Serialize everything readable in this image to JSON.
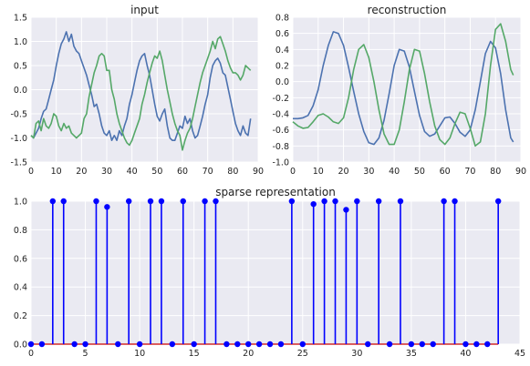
{
  "colors": {
    "background": "#eaeaf2",
    "grid": "#ffffff",
    "series_blue": "#4c72b0",
    "series_green": "#55a868",
    "stem": "#0000ff",
    "baseline": "#cc0000"
  },
  "chart_data": [
    {
      "type": "line",
      "title": "input",
      "xlim": [
        0,
        90
      ],
      "ylim": [
        -1.5,
        1.5
      ],
      "xticks": [
        "0",
        "10",
        "20",
        "30",
        "40",
        "50",
        "60",
        "70",
        "80",
        "90"
      ],
      "yticks": [
        "-1.5",
        "-1.0",
        "-0.5",
        "0.0",
        "0.5",
        "1.0",
        "1.5"
      ],
      "grid": true,
      "series": [
        {
          "color": "#4c72b0",
          "x": [
            0,
            1,
            2,
            3,
            4,
            5,
            6,
            7,
            8,
            9,
            10,
            11,
            12,
            13,
            14,
            15,
            16,
            17,
            18,
            19,
            20,
            21,
            22,
            23,
            24,
            25,
            26,
            27,
            28,
            29,
            30,
            31,
            32,
            33,
            34,
            35,
            36,
            37,
            38,
            39,
            40,
            41,
            42,
            43,
            44,
            45,
            46,
            47,
            48,
            49,
            50,
            51,
            52,
            53,
            54,
            55,
            56,
            57,
            58,
            59,
            60,
            61,
            62,
            63,
            64,
            65,
            66,
            67,
            68,
            69,
            70,
            71,
            72,
            73,
            74,
            75,
            76,
            77,
            78,
            79,
            80,
            81,
            82,
            83,
            84,
            85,
            86,
            87
          ],
          "y": [
            -0.95,
            -1.0,
            -0.9,
            -0.8,
            -0.6,
            -0.45,
            -0.4,
            -0.2,
            0.0,
            0.2,
            0.5,
            0.75,
            0.95,
            1.05,
            1.2,
            1.0,
            1.15,
            0.9,
            0.8,
            0.75,
            0.6,
            0.45,
            0.3,
            0.1,
            -0.1,
            -0.35,
            -0.3,
            -0.5,
            -0.75,
            -0.9,
            -0.95,
            -0.85,
            -1.05,
            -0.95,
            -1.05,
            -0.85,
            -0.95,
            -0.75,
            -0.6,
            -0.3,
            -0.1,
            0.15,
            0.4,
            0.6,
            0.7,
            0.75,
            0.5,
            0.3,
            0.0,
            -0.3,
            -0.55,
            -0.65,
            -0.5,
            -0.4,
            -0.75,
            -1.0,
            -1.05,
            -1.05,
            -0.9,
            -0.75,
            -0.8,
            -0.55,
            -0.7,
            -0.6,
            -0.85,
            -1.0,
            -0.95,
            -0.75,
            -0.55,
            -0.3,
            -0.1,
            0.25,
            0.5,
            0.6,
            0.65,
            0.55,
            0.35,
            0.3,
            0.05,
            -0.2,
            -0.45,
            -0.7,
            -0.85,
            -0.95,
            -0.75,
            -0.9,
            -0.95,
            -0.6
          ]
        },
        {
          "color": "#55a868",
          "x": [
            0,
            1,
            2,
            3,
            4,
            5,
            6,
            7,
            8,
            9,
            10,
            11,
            12,
            13,
            14,
            15,
            16,
            17,
            18,
            19,
            20,
            21,
            22,
            23,
            24,
            25,
            26,
            27,
            28,
            29,
            30,
            31,
            32,
            33,
            34,
            35,
            36,
            37,
            38,
            39,
            40,
            41,
            42,
            43,
            44,
            45,
            46,
            47,
            48,
            49,
            50,
            51,
            52,
            53,
            54,
            55,
            56,
            57,
            58,
            59,
            60,
            61,
            62,
            63,
            64,
            65,
            66,
            67,
            68,
            69,
            70,
            71,
            72,
            73,
            74,
            75,
            76,
            77,
            78,
            79,
            80,
            81,
            82,
            83,
            84,
            85,
            86,
            87
          ],
          "y": [
            -0.95,
            -1.0,
            -0.7,
            -0.65,
            -0.85,
            -0.6,
            -0.75,
            -0.8,
            -0.7,
            -0.5,
            -0.55,
            -0.75,
            -0.85,
            -0.7,
            -0.8,
            -0.75,
            -0.9,
            -0.95,
            -1.0,
            -0.95,
            -0.9,
            -0.6,
            -0.5,
            -0.15,
            0.1,
            0.35,
            0.5,
            0.7,
            0.75,
            0.7,
            0.4,
            0.4,
            0.0,
            -0.2,
            -0.5,
            -0.7,
            -0.85,
            -1.0,
            -1.1,
            -1.15,
            -1.05,
            -0.9,
            -0.75,
            -0.6,
            -0.3,
            -0.1,
            0.15,
            0.35,
            0.55,
            0.7,
            0.65,
            0.8,
            0.6,
            0.3,
            0.0,
            -0.25,
            -0.5,
            -0.7,
            -0.85,
            -0.95,
            -1.25,
            -1.05,
            -0.9,
            -0.8,
            -0.6,
            -0.35,
            -0.1,
            0.15,
            0.35,
            0.5,
            0.65,
            0.8,
            1.0,
            0.85,
            1.05,
            1.1,
            0.95,
            0.8,
            0.6,
            0.45,
            0.35,
            0.35,
            0.3,
            0.2,
            0.3,
            0.5,
            0.45,
            0.4
          ]
        }
      ]
    },
    {
      "type": "line",
      "title": "reconstruction",
      "xlim": [
        0,
        90
      ],
      "ylim": [
        -1.0,
        0.8
      ],
      "xticks": [
        "0",
        "10",
        "20",
        "30",
        "40",
        "50",
        "60",
        "70",
        "80",
        "90"
      ],
      "yticks": [
        "-1.0",
        "-0.8",
        "-0.6",
        "-0.4",
        "-0.2",
        "0.0",
        "0.2",
        "0.4",
        "0.6",
        "0.8"
      ],
      "grid": true,
      "series": [
        {
          "color": "#4c72b0",
          "x": [
            0,
            2,
            4,
            6,
            8,
            10,
            12,
            14,
            16,
            18,
            20,
            22,
            24,
            26,
            28,
            30,
            32,
            34,
            36,
            38,
            40,
            42,
            44,
            46,
            48,
            50,
            52,
            54,
            56,
            58,
            60,
            62,
            64,
            66,
            68,
            70,
            72,
            74,
            76,
            78,
            80,
            82,
            84,
            86,
            87
          ],
          "y": [
            -0.46,
            -0.46,
            -0.45,
            -0.42,
            -0.3,
            -0.1,
            0.2,
            0.45,
            0.62,
            0.6,
            0.45,
            0.18,
            -0.12,
            -0.4,
            -0.62,
            -0.76,
            -0.78,
            -0.7,
            -0.48,
            -0.15,
            0.2,
            0.4,
            0.38,
            0.18,
            -0.12,
            -0.42,
            -0.62,
            -0.68,
            -0.65,
            -0.55,
            -0.45,
            -0.44,
            -0.52,
            -0.63,
            -0.68,
            -0.6,
            -0.35,
            0.0,
            0.35,
            0.5,
            0.42,
            0.1,
            -0.35,
            -0.7,
            -0.75
          ]
        },
        {
          "color": "#55a868",
          "x": [
            0,
            2,
            4,
            6,
            8,
            10,
            12,
            14,
            16,
            18,
            20,
            22,
            24,
            26,
            28,
            30,
            32,
            34,
            36,
            38,
            40,
            42,
            44,
            46,
            48,
            50,
            52,
            54,
            56,
            58,
            60,
            62,
            64,
            66,
            68,
            70,
            72,
            74,
            76,
            78,
            80,
            82,
            84,
            86,
            87
          ],
          "y": [
            -0.5,
            -0.55,
            -0.58,
            -0.57,
            -0.5,
            -0.42,
            -0.4,
            -0.44,
            -0.5,
            -0.52,
            -0.45,
            -0.2,
            0.15,
            0.4,
            0.46,
            0.3,
            0.0,
            -0.35,
            -0.65,
            -0.78,
            -0.78,
            -0.6,
            -0.25,
            0.15,
            0.4,
            0.38,
            0.1,
            -0.25,
            -0.55,
            -0.72,
            -0.78,
            -0.7,
            -0.52,
            -0.38,
            -0.4,
            -0.58,
            -0.8,
            -0.75,
            -0.4,
            0.2,
            0.65,
            0.72,
            0.5,
            0.15,
            0.08
          ]
        }
      ]
    },
    {
      "type": "stem",
      "title": "sparse representation",
      "xlim": [
        0,
        45
      ],
      "ylim": [
        0.0,
        1.0
      ],
      "xticks": [
        "0",
        "5",
        "10",
        "15",
        "20",
        "25",
        "30",
        "35",
        "40",
        "45"
      ],
      "yticks": [
        "0.0",
        "0.2",
        "0.4",
        "0.6",
        "0.8",
        "1.0"
      ],
      "grid": true,
      "x": [
        0,
        1,
        2,
        3,
        4,
        5,
        6,
        7,
        8,
        9,
        10,
        11,
        12,
        13,
        14,
        15,
        16,
        17,
        18,
        19,
        20,
        21,
        22,
        23,
        24,
        25,
        26,
        27,
        28,
        29,
        30,
        31,
        32,
        33,
        34,
        35,
        36,
        37,
        38,
        39,
        40,
        41,
        42,
        43
      ],
      "values": [
        0,
        0,
        1,
        1,
        0,
        0,
        1,
        0.96,
        0,
        1,
        0,
        1,
        1,
        0,
        1,
        0,
        1,
        1,
        0,
        0,
        0,
        0,
        0,
        0,
        1,
        0,
        0.98,
        1,
        1,
        0.94,
        1,
        0,
        1,
        0,
        1,
        0,
        0,
        0,
        1,
        1,
        0,
        0,
        0,
        1
      ]
    }
  ]
}
